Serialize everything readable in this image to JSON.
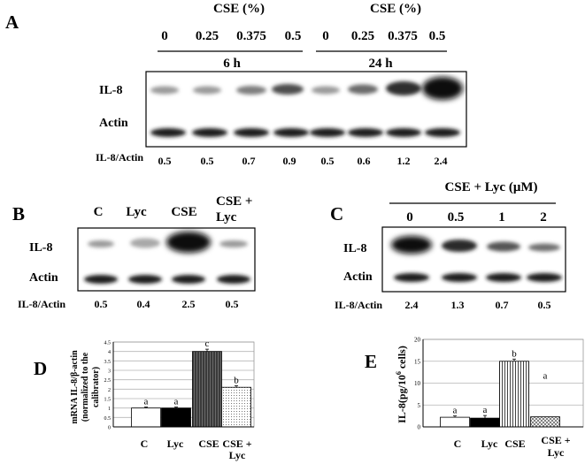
{
  "panel_a": {
    "letter": "A",
    "group1": {
      "header": "CSE (%)",
      "doses": [
        "0",
        "0.25",
        "0.375",
        "0.5"
      ],
      "time": "6 h"
    },
    "group2": {
      "header": "CSE (%)",
      "doses": [
        "0",
        "0.25",
        "0.375",
        "0.5"
      ],
      "time": "24 h"
    },
    "row_labels": {
      "il8": "IL-8",
      "actin": "Actin"
    },
    "ratio_label": "IL-8/Actin",
    "ratios": [
      "0.5",
      "0.5",
      "0.7",
      "0.9",
      "0.5",
      "0.6",
      "1.2",
      "2.4"
    ]
  },
  "panel_b": {
    "letter": "B",
    "lanes": [
      "C",
      "Lyc",
      "CSE",
      "CSE +",
      "Lyc"
    ],
    "row_labels": {
      "il8": "IL-8",
      "actin": "Actin"
    },
    "ratio_label": "IL-8/Actin",
    "ratios": [
      "0.5",
      "0.4",
      "2.5",
      "0.5"
    ]
  },
  "panel_c": {
    "letter": "C",
    "header": "CSE + Lyc (μM)",
    "doses": [
      "0",
      "0.5",
      "1",
      "2"
    ],
    "row_labels": {
      "il8": "IL-8",
      "actin": "Actin"
    },
    "ratio_label": "IL-8/Actin",
    "ratios": [
      "2.4",
      "1.3",
      "0.7",
      "0.5"
    ]
  },
  "panel_d": {
    "letter": "D",
    "ylabel_lines": [
      "mRNA IL-8/β-actin",
      "(normalized to  the",
      "calibrator)"
    ],
    "yticks": [
      "0",
      "0.5",
      "1",
      "1.5",
      "2",
      "2.5",
      "3",
      "3.5",
      "4",
      "4.5"
    ],
    "categories": [
      "C",
      "Lyc",
      "CSE",
      "CSE +",
      "Lyc"
    ],
    "letters": [
      "a",
      "a",
      "c",
      "b"
    ]
  },
  "panel_e": {
    "letter": "E",
    "ylabel": "IL-8(pg/10",
    "ylabel_sup": "6",
    "ylabel_end": " cells)",
    "yticks": [
      "0",
      "5",
      "10",
      "15",
      "20"
    ],
    "categories": [
      "C",
      "Lyc",
      "CSE",
      "CSE +",
      "Lyc"
    ],
    "letters": [
      "a",
      "a",
      "b",
      "a"
    ]
  },
  "chart_data": [
    {
      "type": "bar",
      "categories": [
        "C",
        "Lyc",
        "CSE",
        "CSE + Lyc"
      ],
      "values": [
        1.0,
        1.0,
        4.0,
        2.1
      ],
      "errors": [
        0.05,
        0.05,
        0.12,
        0.08
      ],
      "ylim": [
        0,
        4.5
      ],
      "ytick_step": 0.5,
      "grid": true,
      "fills": [
        "white",
        "black",
        "dark-hatched",
        "dotted"
      ]
    },
    {
      "type": "bar",
      "categories": [
        "C",
        "Lyc",
        "CSE",
        "CSE + Lyc"
      ],
      "values": [
        2.2,
        2.0,
        15.0,
        2.3
      ],
      "errors": [
        0.3,
        0.6,
        0.5,
        0.0
      ],
      "ylim": [
        0,
        20
      ],
      "ytick_step": 5,
      "grid": true,
      "fills": [
        "white",
        "black",
        "vertical-stripes",
        "crosshatch"
      ]
    }
  ]
}
